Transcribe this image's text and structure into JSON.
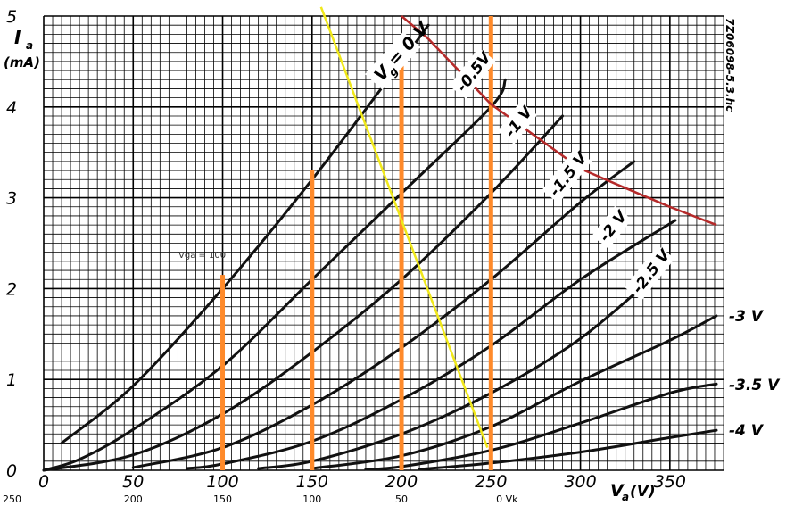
{
  "chart_data": {
    "type": "line",
    "x_axis": {
      "label_symbol": "V",
      "label_subscript": "a",
      "label_unit": "(V)",
      "range": [
        0,
        380
      ],
      "ticks": [
        0,
        50,
        100,
        150,
        200,
        250,
        300,
        350
      ],
      "secondary_labels": [
        {
          "at": 0,
          "text": "250"
        },
        {
          "at": 50,
          "text": "200"
        },
        {
          "at": 100,
          "text": "150"
        },
        {
          "at": 150,
          "text": "100"
        },
        {
          "at": 200,
          "text": "50"
        },
        {
          "at": 250,
          "text": "0  Vk"
        }
      ]
    },
    "y_axis": {
      "label_symbol": "I",
      "label_subscript": "a",
      "label_unit": "(mA)",
      "range": [
        0,
        5
      ],
      "ticks": [
        0,
        1,
        2,
        3,
        4,
        5
      ]
    },
    "grid": true,
    "series": [
      {
        "name": "Vg = 0 V",
        "color": "#111111",
        "points": [
          [
            10,
            0.3
          ],
          [
            50,
            0.93
          ],
          [
            100,
            2.0
          ],
          [
            150,
            3.2
          ],
          [
            200,
            4.5
          ],
          [
            215,
            4.9
          ]
        ]
      },
      {
        "name": "-0.5 V",
        "color": "#111111",
        "points": [
          [
            0,
            0
          ],
          [
            20,
            0.12
          ],
          [
            50,
            0.45
          ],
          [
            100,
            1.15
          ],
          [
            150,
            2.1
          ],
          [
            200,
            3.05
          ],
          [
            250,
            4.0
          ],
          [
            258,
            4.3
          ]
        ]
      },
      {
        "name": "-1 V",
        "color": "#111111",
        "points": [
          [
            0,
            0
          ],
          [
            50,
            0.17
          ],
          [
            100,
            0.62
          ],
          [
            150,
            1.3
          ],
          [
            200,
            2.1
          ],
          [
            250,
            3.05
          ],
          [
            290,
            3.9
          ]
        ]
      },
      {
        "name": "-1.5 V",
        "color": "#111111",
        "points": [
          [
            50,
            0.03
          ],
          [
            100,
            0.25
          ],
          [
            150,
            0.72
          ],
          [
            200,
            1.35
          ],
          [
            250,
            2.1
          ],
          [
            300,
            2.95
          ],
          [
            330,
            3.4
          ]
        ]
      },
      {
        "name": "-2 V",
        "color": "#111111",
        "points": [
          [
            80,
            0.02
          ],
          [
            100,
            0.07
          ],
          [
            150,
            0.32
          ],
          [
            200,
            0.78
          ],
          [
            250,
            1.37
          ],
          [
            300,
            2.1
          ],
          [
            353,
            2.75
          ]
        ]
      },
      {
        "name": "-2.5 V",
        "color": "#111111",
        "points": [
          [
            120,
            0.02
          ],
          [
            150,
            0.1
          ],
          [
            200,
            0.4
          ],
          [
            250,
            0.85
          ],
          [
            300,
            1.45
          ],
          [
            345,
            2.2
          ]
        ]
      },
      {
        "name": "-3 V",
        "color": "#111111",
        "points": [
          [
            150,
            0.02
          ],
          [
            200,
            0.16
          ],
          [
            250,
            0.48
          ],
          [
            300,
            0.98
          ],
          [
            350,
            1.43
          ],
          [
            376,
            1.7
          ]
        ]
      },
      {
        "name": "-3.5 V",
        "color": "#111111",
        "points": [
          [
            180,
            0.01
          ],
          [
            200,
            0.04
          ],
          [
            250,
            0.22
          ],
          [
            300,
            0.52
          ],
          [
            350,
            0.85
          ],
          [
            376,
            0.95
          ]
        ]
      },
      {
        "name": "-4 V",
        "color": "#111111",
        "points": [
          [
            210,
            0.01
          ],
          [
            250,
            0.08
          ],
          [
            300,
            0.2
          ],
          [
            350,
            0.36
          ],
          [
            376,
            0.44
          ]
        ]
      }
    ],
    "overlays": {
      "load_line": {
        "color": "#f0e81a",
        "points": [
          [
            155,
            5.1
          ],
          [
            248,
            0.25
          ]
        ]
      },
      "power_curve": {
        "color": "#b52a2a",
        "points": [
          [
            200,
            5.0
          ],
          [
            215,
            4.75
          ],
          [
            250,
            4.03
          ],
          [
            300,
            3.32
          ],
          [
            320,
            3.15
          ],
          [
            350,
            2.9
          ],
          [
            376,
            2.7
          ]
        ]
      },
      "vertical_markers": {
        "color": "#ff8a2a",
        "lines": [
          [
            100,
            0,
            2.15
          ],
          [
            150,
            0,
            3.3
          ],
          [
            200,
            0,
            4.5
          ],
          [
            250,
            0,
            5.0
          ]
        ]
      }
    },
    "annotations": {
      "vertical_code": "7Z06098-5.3.hc",
      "vga_note": "Vga = 100"
    },
    "curve_labels": [
      "V",
      "g",
      "= 0 V",
      "-0.5V",
      "-1 V",
      "-1.5 V",
      "-2 V",
      "-2.5 V",
      "-3 V",
      "-3.5 V",
      "-4 V"
    ]
  }
}
